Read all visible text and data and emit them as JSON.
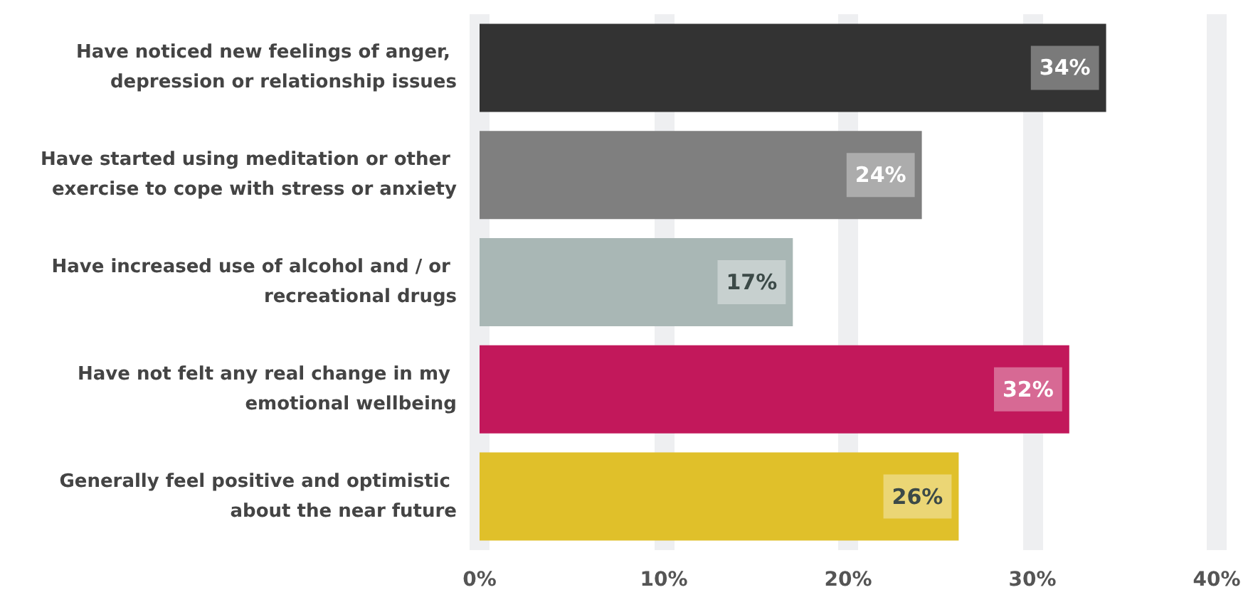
{
  "chart_data": {
    "type": "bar",
    "orientation": "horizontal",
    "categories": [
      "Have noticed new feelings of anger, depression or relationship issues",
      "Have started using meditation or other exercise to cope with stress or anxiety",
      "Have increased use of alcohol and / or recreational drugs",
      "Have not felt any real change in my emotional wellbeing",
      "Generally feel positive and optimistic about the near future"
    ],
    "values": [
      34,
      24,
      17,
      32,
      26
    ],
    "colors": [
      "#333333",
      "#7f7f7f",
      "#a9b7b5",
      "#c2185b",
      "#e0c02a"
    ],
    "value_labels": [
      "34%",
      "24%",
      "17%",
      "32%",
      "26%"
    ],
    "xlim": [
      0,
      40
    ],
    "xticks": [
      {
        "value": 0,
        "label": "0%"
      },
      {
        "value": 10,
        "label": "10%"
      },
      {
        "value": 20,
        "label": "20%"
      },
      {
        "value": 30,
        "label": "30%"
      },
      {
        "value": 40,
        "label": "40%"
      }
    ],
    "grid": "x"
  }
}
